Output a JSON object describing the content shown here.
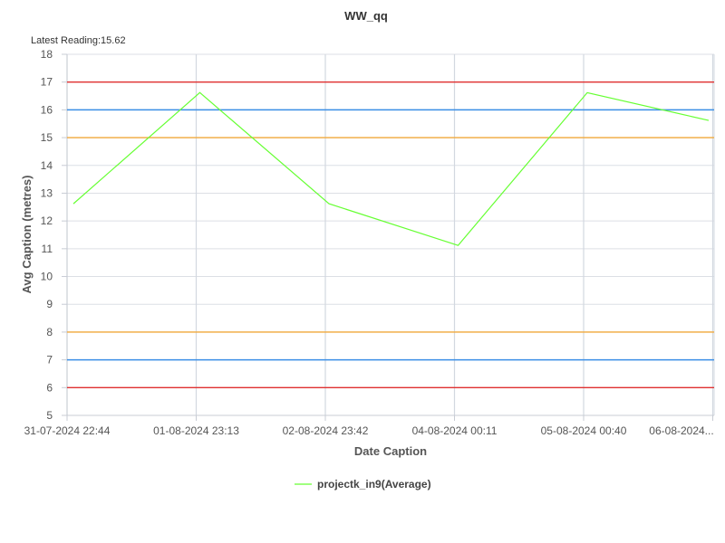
{
  "chart_data": {
    "type": "line",
    "title": "WW_qq",
    "subtitle": "Latest Reading:15.62",
    "xlabel": "Date Caption",
    "ylabel": "Avg Caption (metres)",
    "x": [
      "31-07-2024 22:44",
      "01-08-2024 23:13",
      "02-08-2024 23:42",
      "04-08-2024 00:11",
      "05-08-2024 00:40",
      "06-08-2024..."
    ],
    "ylim": [
      5,
      18
    ],
    "yticks": [
      5,
      6,
      7,
      8,
      9,
      10,
      11,
      12,
      13,
      14,
      15,
      16,
      17,
      18
    ],
    "grid": true,
    "legend_position": "bottom-center",
    "series": [
      {
        "name": "projectk_in9(Average)",
        "color": "#66ff33",
        "values": [
          12.62,
          16.62,
          12.62,
          11.12,
          16.62,
          15.62
        ]
      }
    ],
    "threshold_lines": [
      {
        "value": 17,
        "color": "#e03030"
      },
      {
        "value": 16,
        "color": "#3a8ee6"
      },
      {
        "value": 15,
        "color": "#f2a93b"
      },
      {
        "value": 8,
        "color": "#f2a93b"
      },
      {
        "value": 7,
        "color": "#3a8ee6"
      },
      {
        "value": 6,
        "color": "#e03030"
      }
    ]
  }
}
